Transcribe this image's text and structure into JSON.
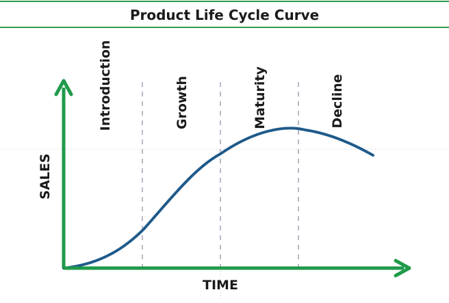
{
  "title": "Product Life Cycle Curve",
  "axes": {
    "x_label": "TIME",
    "y_label": "SALES"
  },
  "stages": [
    {
      "label": "Introduction"
    },
    {
      "label": "Growth"
    },
    {
      "label": "Maturity"
    },
    {
      "label": "Decline"
    }
  ],
  "colors": {
    "frame_green": "#2e9b4f",
    "axis_green": "#1f9a4a",
    "curve_blue": "#1f5a8a",
    "divider_gray": "#b8b8c8",
    "text": "#1a1a1a"
  }
}
